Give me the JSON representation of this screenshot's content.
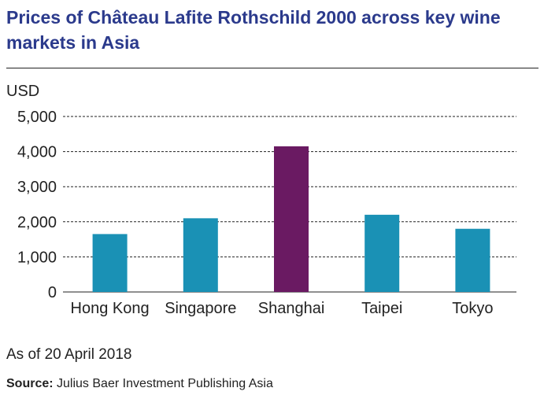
{
  "title": "Prices of Château Lafite Rothschild 2000 across key wine markets in Asia",
  "note": "As of 20 April 2018",
  "source": {
    "label": "Source:",
    "text": " Julius Baer Investment Publishing Asia"
  },
  "colors": {
    "bar": "#1a91b5",
    "highlight": "#6a1a62",
    "title": "#2b3a8c"
  },
  "chart_data": {
    "type": "bar",
    "title": "Prices of Château Lafite Rothschild 2000 across key wine markets in Asia",
    "ylabel": "USD",
    "xlabel": "",
    "categories": [
      "Hong Kong",
      "Singapore",
      "Shanghai",
      "Taipei",
      "Tokyo"
    ],
    "values": [
      1650,
      2100,
      4150,
      2200,
      1800
    ],
    "highlight_index": 2,
    "ylim": [
      0,
      5000
    ],
    "yticks": [
      0,
      1000,
      2000,
      3000,
      4000,
      5000
    ],
    "ytick_labels": [
      "0",
      "1,000",
      "2,000",
      "3,000",
      "4,000",
      "5,000"
    ],
    "grid": true,
    "legend": "none"
  }
}
